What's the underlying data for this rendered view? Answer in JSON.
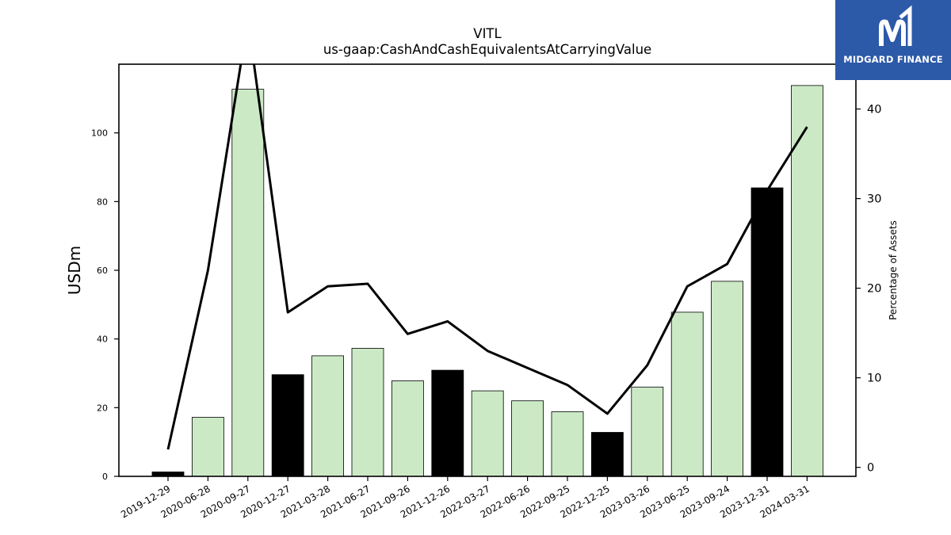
{
  "chart_data": {
    "type": "bar",
    "title": "VITL",
    "subtitle": "us-gaap:CashAndCashEquivalentsAtCarryingValue",
    "ylabel": "USDm",
    "y2label": "Percentage of Assets",
    "categories": [
      "2019-12-29",
      "2020-06-28",
      "2020-09-27",
      "2020-12-27",
      "2021-03-28",
      "2021-06-27",
      "2021-09-26",
      "2021-12-26",
      "2022-03-27",
      "2022-06-26",
      "2022-09-25",
      "2022-12-25",
      "2023-03-26",
      "2023-06-25",
      "2023-09-24",
      "2023-12-31",
      "2024-03-31"
    ],
    "series": [
      {
        "axis": "left",
        "kind": "bar",
        "values": [
          1.3,
          17.2,
          112.7,
          29.6,
          35.1,
          37.3,
          27.8,
          30.9,
          24.9,
          22.0,
          18.8,
          12.8,
          26.0,
          47.8,
          56.8,
          84.0,
          113.8
        ],
        "fiscal_year_end": [
          true,
          false,
          false,
          true,
          false,
          false,
          false,
          true,
          false,
          false,
          false,
          true,
          false,
          false,
          false,
          true,
          false
        ]
      },
      {
        "axis": "right",
        "kind": "line",
        "values": [
          2.0,
          22.0,
          50.0,
          17.3,
          20.2,
          20.5,
          14.9,
          16.3,
          13.0,
          11.1,
          9.2,
          6.0,
          11.4,
          20.2,
          22.7,
          30.9,
          38.0
        ]
      }
    ],
    "ylim": [
      0,
      120
    ],
    "y2lim": [
      -1,
      45
    ],
    "yticks": [
      0,
      20,
      40,
      60,
      80,
      100
    ],
    "y2ticks": [
      0,
      10,
      20,
      30,
      40
    ],
    "grid": false,
    "colors": {
      "bar_light": "#cce9c6",
      "bar_dark": "#000000",
      "line": "#000000",
      "logo_bg": "#2c59a8"
    }
  },
  "logo": {
    "text": "MIDGARD FINANCE",
    "icon": "midgard-m-logo-icon"
  }
}
